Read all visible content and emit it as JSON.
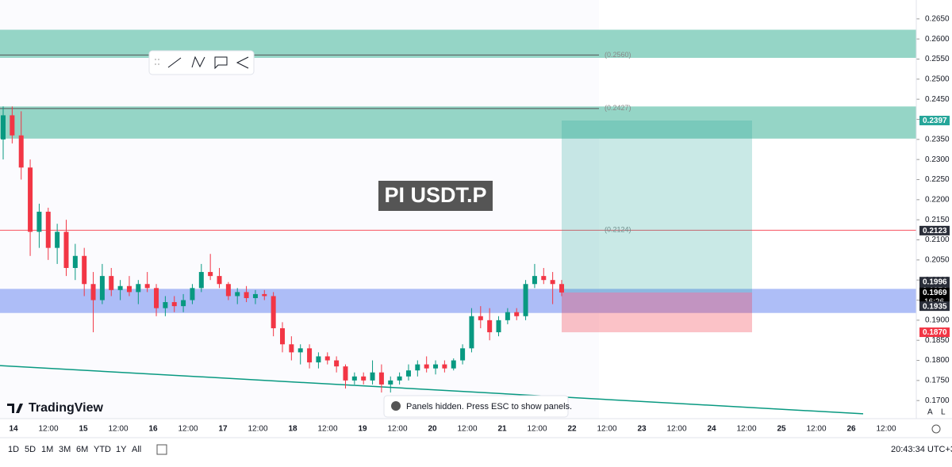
{
  "chart_data": {
    "type": "candlestick",
    "symbol": "PI USDT.P",
    "ylim": [
      0.1655,
      0.2697
    ],
    "yticks": [
      {
        "value": 0.17,
        "label": "0.1700"
      },
      {
        "value": 0.175,
        "label": "0.1750"
      },
      {
        "value": 0.18,
        "label": "0.1800"
      },
      {
        "value": 0.185,
        "label": "0.1850"
      },
      {
        "value": 0.19,
        "label": "0.1900"
      },
      {
        "value": 0.195,
        "label": "0.1950"
      },
      {
        "value": 0.2,
        "label": "0.2000"
      },
      {
        "value": 0.205,
        "label": "0.2050"
      },
      {
        "value": 0.21,
        "label": "0.2100"
      },
      {
        "value": 0.215,
        "label": "0.2150"
      },
      {
        "value": 0.22,
        "label": "0.2200"
      },
      {
        "value": 0.225,
        "label": "0.2250"
      },
      {
        "value": 0.23,
        "label": "0.2300"
      },
      {
        "value": 0.235,
        "label": "0.2350"
      },
      {
        "value": 0.24,
        "label": "0.2400"
      },
      {
        "value": 0.245,
        "label": "0.2450"
      },
      {
        "value": 0.25,
        "label": "0.2500"
      },
      {
        "value": 0.255,
        "label": "0.2550"
      },
      {
        "value": 0.26,
        "label": "0.2600"
      },
      {
        "value": 0.265,
        "label": "0.2650"
      }
    ],
    "x_labels": [
      "14",
      "12:00",
      "15",
      "12:00",
      "16",
      "12:00",
      "17",
      "12:00",
      "18",
      "12:00",
      "19",
      "12:00",
      "20",
      "12:00",
      "21",
      "12:00",
      "22",
      "12:00",
      "23",
      "12:00",
      "24",
      "12:00",
      "25",
      "12:00",
      "26",
      "12:00"
    ],
    "up_color": "#089981",
    "down_color": "#f23645",
    "ohlc": [
      [
        0.235,
        0.2432,
        0.23,
        0.241
      ],
      [
        0.241,
        0.2432,
        0.234,
        0.236
      ],
      [
        0.236,
        0.242,
        0.225,
        0.228
      ],
      [
        0.228,
        0.23,
        0.206,
        0.212
      ],
      [
        0.212,
        0.219,
        0.208,
        0.217
      ],
      [
        0.217,
        0.218,
        0.205,
        0.208
      ],
      [
        0.208,
        0.214,
        0.204,
        0.212
      ],
      [
        0.212,
        0.215,
        0.201,
        0.203
      ],
      [
        0.203,
        0.209,
        0.2,
        0.206
      ],
      [
        0.206,
        0.208,
        0.196,
        0.199
      ],
      [
        0.199,
        0.202,
        0.187,
        0.195
      ],
      [
        0.195,
        0.204,
        0.194,
        0.201
      ],
      [
        0.201,
        0.203,
        0.196,
        0.1975
      ],
      [
        0.1975,
        0.2,
        0.195,
        0.1985
      ],
      [
        0.1985,
        0.201,
        0.196,
        0.197
      ],
      [
        0.197,
        0.2,
        0.194,
        0.199
      ],
      [
        0.199,
        0.202,
        0.197,
        0.198
      ],
      [
        0.198,
        0.199,
        0.191,
        0.193
      ],
      [
        0.193,
        0.196,
        0.191,
        0.1945
      ],
      [
        0.1945,
        0.196,
        0.192,
        0.1935
      ],
      [
        0.1935,
        0.1965,
        0.192,
        0.195
      ],
      [
        0.195,
        0.199,
        0.194,
        0.198
      ],
      [
        0.198,
        0.204,
        0.197,
        0.202
      ],
      [
        0.202,
        0.2065,
        0.2,
        0.201
      ],
      [
        0.201,
        0.203,
        0.198,
        0.199
      ],
      [
        0.199,
        0.1995,
        0.195,
        0.196
      ],
      [
        0.196,
        0.198,
        0.194,
        0.197
      ],
      [
        0.197,
        0.1985,
        0.1945,
        0.1955
      ],
      [
        0.1955,
        0.1975,
        0.194,
        0.1965
      ],
      [
        0.1965,
        0.1975,
        0.195,
        0.196
      ],
      [
        0.196,
        0.197,
        0.186,
        0.188
      ],
      [
        0.188,
        0.1895,
        0.182,
        0.184
      ],
      [
        0.184,
        0.186,
        0.18,
        0.182
      ],
      [
        0.182,
        0.184,
        0.179,
        0.183
      ],
      [
        0.183,
        0.184,
        0.178,
        0.1795
      ],
      [
        0.1795,
        0.182,
        0.178,
        0.181
      ],
      [
        0.181,
        0.182,
        0.179,
        0.18
      ],
      [
        0.18,
        0.181,
        0.177,
        0.1785
      ],
      [
        0.1785,
        0.179,
        0.173,
        0.175
      ],
      [
        0.175,
        0.177,
        0.174,
        0.176
      ],
      [
        0.176,
        0.177,
        0.174,
        0.175
      ],
      [
        0.175,
        0.18,
        0.174,
        0.177
      ],
      [
        0.177,
        0.179,
        0.172,
        0.174
      ],
      [
        0.174,
        0.176,
        0.172,
        0.175
      ],
      [
        0.175,
        0.177,
        0.174,
        0.176
      ],
      [
        0.176,
        0.179,
        0.175,
        0.1775
      ],
      [
        0.1775,
        0.18,
        0.176,
        0.179
      ],
      [
        0.179,
        0.181,
        0.177,
        0.178
      ],
      [
        0.178,
        0.18,
        0.1765,
        0.179
      ],
      [
        0.179,
        0.18,
        0.177,
        0.178
      ],
      [
        0.178,
        0.1805,
        0.1775,
        0.18
      ],
      [
        0.18,
        0.184,
        0.179,
        0.183
      ],
      [
        0.183,
        0.193,
        0.182,
        0.191
      ],
      [
        0.191,
        0.1935,
        0.188,
        0.19
      ],
      [
        0.19,
        0.193,
        0.185,
        0.187
      ],
      [
        0.187,
        0.191,
        0.186,
        0.19
      ],
      [
        0.19,
        0.193,
        0.189,
        0.192
      ],
      [
        0.192,
        0.193,
        0.19,
        0.191
      ],
      [
        0.191,
        0.2,
        0.19,
        0.199
      ],
      [
        0.199,
        0.204,
        0.198,
        0.201
      ],
      [
        0.201,
        0.203,
        0.199,
        0.2
      ],
      [
        0.2,
        0.202,
        0.194,
        0.199
      ],
      [
        0.199,
        0.2,
        0.196,
        0.1969
      ]
    ],
    "zones": [
      {
        "from": 0.2553,
        "to": 0.2623,
        "color": "#8fd3c3"
      },
      {
        "from": 0.2352,
        "to": 0.2432,
        "color": "#8fd3c3"
      },
      {
        "from": 0.1918,
        "to": 0.1978,
        "color": "#9aaef5"
      }
    ],
    "levels": [
      {
        "value": 0.256,
        "label": "(0.2560)"
      },
      {
        "value": 0.2427,
        "label": "(0.2427)"
      },
      {
        "value": 0.2124,
        "label": "(0.2124)"
      }
    ],
    "position": {
      "entry": 0.1969,
      "target": 0.2397,
      "stop": 0.187
    },
    "trendline": {
      "from": 0.1787,
      "to": 0.1667
    },
    "price_tags": [
      {
        "value": 0.2397,
        "color": "#26a69a"
      },
      {
        "value": 0.2123,
        "color": "#2a2e39"
      },
      {
        "value": 0.1996,
        "color": "#2a2e39"
      },
      {
        "value": 0.1974,
        "color": "#2a2e39"
      },
      {
        "value": 0.1969,
        "color": "#000000",
        "countdown": "16:26"
      },
      {
        "value": 0.1935,
        "color": "#2a2e39"
      },
      {
        "value": 0.187,
        "label": "0.1870",
        "color": "#f23645"
      }
    ]
  },
  "ui": {
    "brand": "TradingView",
    "toast": "Panels hidden. Press ESC to show panels.",
    "ranges": [
      "1D",
      "5D",
      "1M",
      "3M",
      "6M",
      "YTD",
      "1Y",
      "All"
    ],
    "clock": "20:43:34 UTC+3",
    "scale_modes": [
      "A",
      "L"
    ]
  }
}
